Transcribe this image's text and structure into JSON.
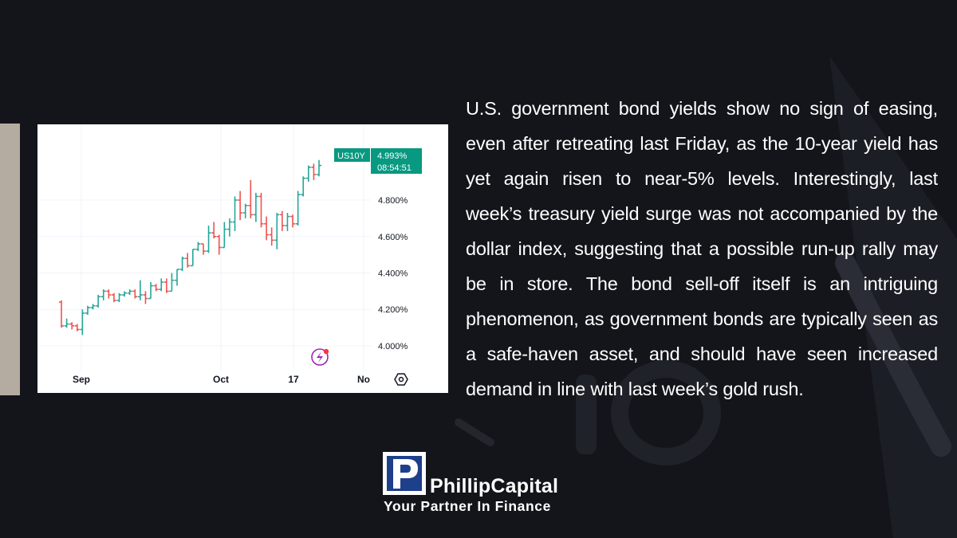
{
  "article": {
    "text": "U.S. government bond yields show no sign of easing, even after retreating last Friday, as the 10-year yield has yet again risen to near-5% levels. Interestingly, last week’s treasury yield surge was not accompanied by the dollar index, suggesting that a possible run-up rally may be in store. The bond sell-off itself is an intriguing phenomenon, as government bonds are typically seen as a safe-haven asset, and should have seen increased demand in line with last week’s gold rush."
  },
  "brand": {
    "name": "PhillipCapital",
    "tagline": "Your Partner In Finance",
    "logo_letter": "P"
  },
  "chart_data": {
    "type": "bar",
    "symbol": "US10Y",
    "last_price": "4.993%",
    "countdown": "08:54:51",
    "y_ticks": [
      "4.800%",
      "4.600%",
      "4.400%",
      "4.200%",
      "4.000%"
    ],
    "y_tick_values": [
      4.8,
      4.6,
      4.4,
      4.2,
      4.0
    ],
    "x_ticks": [
      "Sep",
      "Oct",
      "17",
      "No"
    ],
    "ylim": [
      3.86,
      5.15
    ],
    "colors": {
      "up": "#26a69a",
      "down": "#ef5350",
      "badge": "#089981"
    },
    "ohlc": [
      {
        "d": "Aug 28",
        "o": 4.24,
        "h": 4.25,
        "l": 4.1,
        "c": 4.11
      },
      {
        "d": "Aug 29",
        "o": 4.11,
        "h": 4.15,
        "l": 4.1,
        "c": 4.12
      },
      {
        "d": "Aug 30",
        "o": 4.12,
        "h": 4.13,
        "l": 4.09,
        "c": 4.11
      },
      {
        "d": "Aug 31",
        "o": 4.11,
        "h": 4.12,
        "l": 4.08,
        "c": 4.09
      },
      {
        "d": "Sep 1",
        "o": 4.09,
        "h": 4.2,
        "l": 4.06,
        "c": 4.18
      },
      {
        "d": "Sep 5",
        "o": 4.18,
        "h": 4.22,
        "l": 4.17,
        "c": 4.21
      },
      {
        "d": "Sep 6",
        "o": 4.21,
        "h": 4.23,
        "l": 4.2,
        "c": 4.22
      },
      {
        "d": "Sep 7",
        "o": 4.22,
        "h": 4.28,
        "l": 4.21,
        "c": 4.27
      },
      {
        "d": "Sep 8",
        "o": 4.27,
        "h": 4.31,
        "l": 4.25,
        "c": 4.3
      },
      {
        "d": "Sep 11",
        "o": 4.3,
        "h": 4.31,
        "l": 4.26,
        "c": 4.28
      },
      {
        "d": "Sep 12",
        "o": 4.28,
        "h": 4.29,
        "l": 4.24,
        "c": 4.25
      },
      {
        "d": "Sep 13",
        "o": 4.25,
        "h": 4.29,
        "l": 4.24,
        "c": 4.28
      },
      {
        "d": "Sep 14",
        "o": 4.28,
        "h": 4.3,
        "l": 4.27,
        "c": 4.29
      },
      {
        "d": "Sep 15",
        "o": 4.29,
        "h": 4.31,
        "l": 4.28,
        "c": 4.3
      },
      {
        "d": "Sep 18",
        "o": 4.3,
        "h": 4.31,
        "l": 4.26,
        "c": 4.27
      },
      {
        "d": "Sep 19",
        "o": 4.27,
        "h": 4.36,
        "l": 4.25,
        "c": 4.28
      },
      {
        "d": "Sep 20",
        "o": 4.28,
        "h": 4.3,
        "l": 4.23,
        "c": 4.26
      },
      {
        "d": "Sep 21",
        "o": 4.26,
        "h": 4.35,
        "l": 4.26,
        "c": 4.33
      },
      {
        "d": "Sep 22",
        "o": 4.33,
        "h": 4.34,
        "l": 4.3,
        "c": 4.31
      },
      {
        "d": "Sep 25",
        "o": 4.31,
        "h": 4.37,
        "l": 4.3,
        "c": 4.35
      },
      {
        "d": "Sep 26",
        "o": 4.35,
        "h": 4.37,
        "l": 4.29,
        "c": 4.3
      },
      {
        "d": "Sep 27",
        "o": 4.3,
        "h": 4.4,
        "l": 4.3,
        "c": 4.36
      },
      {
        "d": "Sep 28",
        "o": 4.36,
        "h": 4.42,
        "l": 4.33,
        "c": 4.42
      },
      {
        "d": "Sep 29",
        "o": 4.42,
        "h": 4.49,
        "l": 4.41,
        "c": 4.48
      },
      {
        "d": "Oct 2",
        "o": 4.48,
        "h": 4.51,
        "l": 4.43,
        "c": 4.44
      },
      {
        "d": "Oct 3",
        "o": 4.44,
        "h": 4.53,
        "l": 4.44,
        "c": 4.53
      },
      {
        "d": "Oct 4",
        "o": 4.53,
        "h": 4.57,
        "l": 4.52,
        "c": 4.56
      },
      {
        "d": "Oct 5",
        "o": 4.56,
        "h": 4.56,
        "l": 4.5,
        "c": 4.52
      },
      {
        "d": "Oct 6",
        "o": 4.52,
        "h": 4.66,
        "l": 4.51,
        "c": 4.62
      },
      {
        "d": "Oct 9",
        "o": 4.62,
        "h": 4.68,
        "l": 4.59,
        "c": 4.6
      },
      {
        "d": "Oct 10",
        "o": 4.6,
        "h": 4.61,
        "l": 4.5,
        "c": 4.54
      },
      {
        "d": "Oct 11",
        "o": 4.54,
        "h": 4.68,
        "l": 4.54,
        "c": 4.64
      },
      {
        "d": "Oct 12",
        "o": 4.64,
        "h": 4.7,
        "l": 4.6,
        "c": 4.68
      },
      {
        "d": "Oct 13",
        "o": 4.68,
        "h": 4.82,
        "l": 4.63,
        "c": 4.8
      },
      {
        "d": "Oct 16",
        "o": 4.8,
        "h": 4.85,
        "l": 4.69,
        "c": 4.73
      },
      {
        "d": "Oct 17",
        "o": 4.73,
        "h": 4.78,
        "l": 4.7,
        "c": 4.77
      },
      {
        "d": "Oct 18",
        "o": 4.77,
        "h": 4.91,
        "l": 4.7,
        "c": 4.72
      },
      {
        "d": "Oct 19",
        "o": 4.72,
        "h": 4.84,
        "l": 4.68,
        "c": 4.82
      },
      {
        "d": "Oct 20",
        "o": 4.82,
        "h": 4.84,
        "l": 4.65,
        "c": 4.67
      },
      {
        "d": "Oct 23",
        "o": 4.67,
        "h": 4.71,
        "l": 4.58,
        "c": 4.61
      },
      {
        "d": "Oct 24",
        "o": 4.61,
        "h": 4.65,
        "l": 4.55,
        "c": 4.58
      },
      {
        "d": "Oct 25",
        "o": 4.58,
        "h": 4.73,
        "l": 4.53,
        "c": 4.72
      },
      {
        "d": "Oct 26",
        "o": 4.72,
        "h": 4.74,
        "l": 4.63,
        "c": 4.66
      },
      {
        "d": "Oct 27",
        "o": 4.66,
        "h": 4.73,
        "l": 4.63,
        "c": 4.71
      },
      {
        "d": "Oct 30",
        "o": 4.71,
        "h": 4.72,
        "l": 4.65,
        "c": 4.67
      },
      {
        "d": "Oct 31",
        "o": 4.67,
        "h": 4.85,
        "l": 4.66,
        "c": 4.83
      },
      {
        "d": "Nov 1",
        "o": 4.83,
        "h": 4.93,
        "l": 4.82,
        "c": 4.92
      },
      {
        "d": "Nov 2",
        "o": 4.92,
        "h": 4.99,
        "l": 4.9,
        "c": 4.98
      },
      {
        "d": "Nov 3",
        "o": 4.98,
        "h": 5.0,
        "l": 4.91,
        "c": 4.94
      },
      {
        "d": "Nov 6",
        "o": 4.94,
        "h": 5.02,
        "l": 4.93,
        "c": 4.99
      }
    ]
  }
}
